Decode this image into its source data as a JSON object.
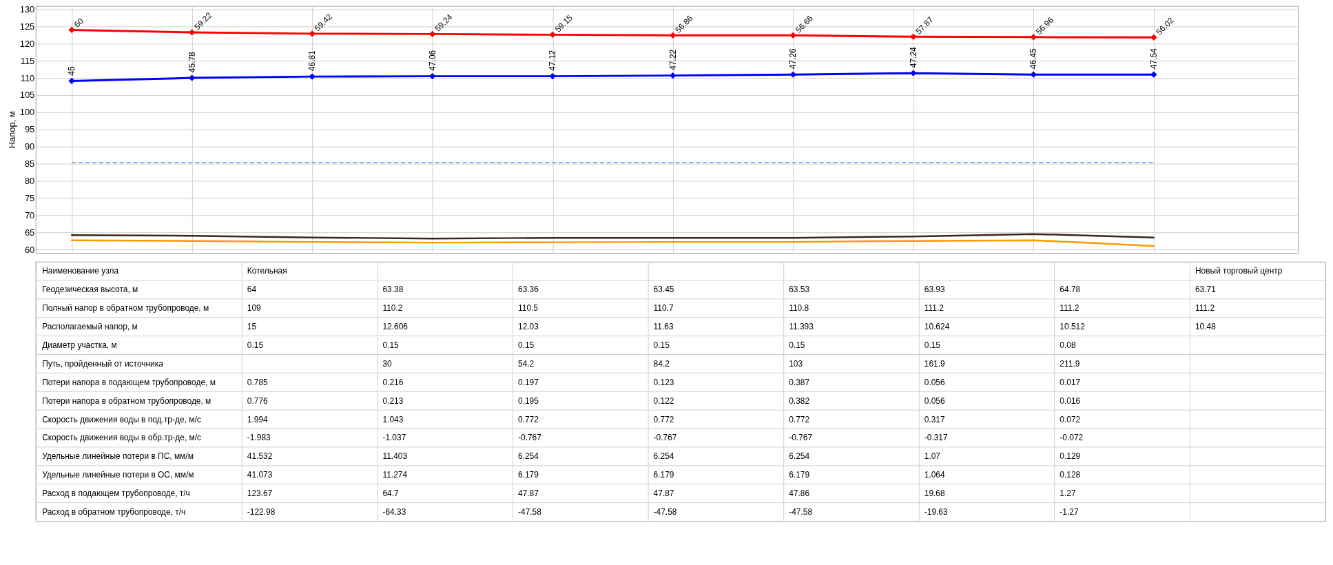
{
  "chart_data": [
    {
      "type": "line",
      "categories": [
        null,
        null,
        null,
        null,
        null,
        null,
        null,
        null,
        null,
        null
      ],
      "series": [
        {
          "color": "#ff0000",
          "marker": "diamond",
          "values": [
            124.0,
            123.3,
            122.9,
            122.8,
            122.6,
            122.4,
            122.4,
            122.0,
            121.9,
            121.8
          ]
        },
        {
          "color": "#0000ff",
          "marker": "diamond",
          "values": [
            109.1,
            110.0,
            110.4,
            110.5,
            110.5,
            110.7,
            111.0,
            111.4,
            111.0,
            111.0
          ]
        },
        {
          "color": "#3c2323",
          "marker": "none",
          "values": [
            64.2,
            64.0,
            63.5,
            63.2,
            63.4,
            63.4,
            63.4,
            63.8,
            64.5,
            63.5
          ]
        },
        {
          "color": "#ff9900",
          "marker": "none",
          "values": [
            62.7,
            62.5,
            62.2,
            62.0,
            62.1,
            62.2,
            62.2,
            62.5,
            62.7,
            61.0
          ]
        }
      ],
      "ylim": [
        59,
        131
      ],
      "yticks": [
        60,
        65,
        70,
        75,
        80,
        85,
        90,
        95,
        100,
        105,
        110,
        115,
        120,
        125,
        130
      ],
      "ylabel": "Напор, м",
      "grid": true,
      "tick_labels": "y",
      "ref_lines": [
        {
          "axis": "y",
          "value": 85.3,
          "color": "#5b9bd5",
          "line_style": "dashed"
        }
      ],
      "annotations": [
        {
          "text": "60",
          "y": 124.0
        },
        {
          "text": "59.22",
          "y": 123.3
        },
        {
          "text": "59.42",
          "y": 122.9
        },
        {
          "text": "59.24",
          "y": 122.8
        },
        {
          "text": "59.15",
          "y": 122.6
        },
        {
          "text": "56.86",
          "y": 122.4
        },
        {
          "text": "56.66",
          "y": 122.4
        },
        {
          "text": "57.87",
          "y": 122.0
        },
        {
          "text": "56.96",
          "y": 121.9
        },
        "56.02",
        {
          "text": "45",
          "y": 109.1
        },
        {
          "text": "45.78",
          "y": 110.0
        },
        {
          "text": "46.81",
          "y": 110.4
        },
        {
          "text": "47.06",
          "y": 110.5
        },
        {
          "text": "47.12",
          "y": 110.5
        },
        {
          "text": "47.22",
          "y": 110.7
        },
        {
          "text": "47.26",
          "y": 111.0
        },
        {
          "text": "47.24",
          "y": 111.4
        },
        {
          "text": "46.45",
          "y": 111.0
        },
        {
          "text": "47.54",
          "y": 111.0
        }
      ]
    },
    {
      "type": "other",
      "y_categories": [
        "Наименование узла",
        "Геодезическая высота, м",
        "Полный напор в обратном трубопроводе, м",
        "Располагаемый напор, м",
        "Диаметр участка, м",
        "Путь, пройденный от источника",
        "Потери напора в подающем трубопроводе, м",
        "Потери напора в обратном трубопроводе, м",
        "Скорость движения воды в под.тр-де, м/с",
        "Скорость движения воды в обр.тр-де, м/с",
        "Удельные линейные потери в ПС, мм/м",
        "Удельные линейные потери в ОС, мм/м",
        "Расход в подающем трубопроводе, т/ч",
        "Расход в обратном трубопроводе, т/ч"
      ],
      "cell_labels": [
        [
          "Котельная",
          null,
          null,
          null,
          null,
          null,
          null,
          "Новый торговый центр"
        ],
        [
          "64",
          "63.38",
          "63.36",
          "63.45",
          "63.53",
          "63.93",
          "64.78",
          "63.71"
        ],
        [
          "109",
          "110.2",
          "110.5",
          "110.7",
          "110.8",
          "111.2",
          "111.2",
          "111.2"
        ],
        [
          "15",
          "12.606",
          "12.03",
          "11.63",
          "11.393",
          "10.624",
          "10.512",
          "10.48"
        ],
        [
          "0.15",
          "0.15",
          "0.15",
          "0.15",
          "0.15",
          "0.15",
          "0.08",
          null
        ],
        [
          null,
          "30",
          "54.2",
          "84.2",
          "103",
          "161.9",
          "211.9",
          null
        ],
        [
          "0.785",
          "0.216",
          "0.197",
          "0.123",
          "0.387",
          "0.056",
          "0.017",
          null
        ],
        [
          "0.776",
          "0.213",
          "0.195",
          "0.122",
          "0.382",
          "0.056",
          "0.016",
          null
        ],
        [
          "1.994",
          "1.043",
          "0.772",
          "0.772",
          "0.772",
          "0.317",
          "0.072",
          null
        ],
        [
          "-1.983",
          "-1.037",
          "-0.767",
          "-0.767",
          "-0.767",
          "-0.317",
          "-0.072",
          null
        ],
        [
          "41.532",
          "11.403",
          "6.254",
          "6.254",
          "6.254",
          "1.07",
          "0.129",
          null
        ],
        [
          "41.073",
          "11.274",
          "6.179",
          "6.179",
          "6.179",
          "1.064",
          "0.128",
          null
        ],
        [
          "123.67",
          "64.7",
          "47.87",
          "47.87",
          "47.86",
          "19.68",
          "1.27",
          null
        ],
        [
          "-122.98",
          "-64.33",
          "-47.58",
          "-47.58",
          "-47.58",
          "-19.63",
          "-1.27",
          null
        ]
      ]
    }
  ]
}
